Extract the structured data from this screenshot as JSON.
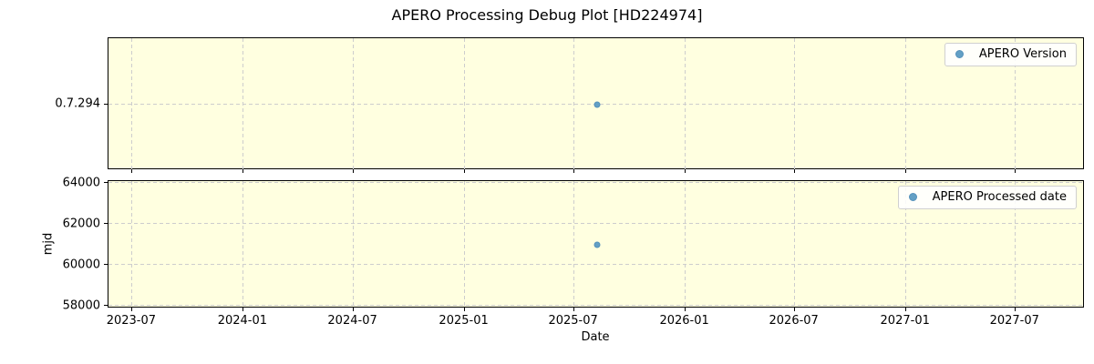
{
  "title": "APERO Processing Debug Plot [HD224974]",
  "colors": {
    "plot_background": "#ffffe0",
    "figure_background": "#ffffff",
    "marker": "#63a0c5",
    "grid": "#cdcdcd",
    "spine": "#000000",
    "legend_background": "#ffffff",
    "legend_border": "#d0d0d0",
    "text": "#000000"
  },
  "chart_data": [
    {
      "type": "scatter",
      "name": "apero-version",
      "legend": {
        "label": "APERO Version",
        "position": "upper right"
      },
      "grid": true,
      "x_axis": {
        "type": "date",
        "lim": [
          "2023-05-23",
          "2027-10-24"
        ],
        "tick_labels_visible": false
      },
      "y_axis": {
        "type": "category",
        "ticks": [
          "0.7.294"
        ]
      },
      "series": [
        {
          "name": "APERO Version",
          "marker": "circle",
          "x": [
            "2025-08-09"
          ],
          "y": [
            "0.7.294"
          ]
        }
      ]
    },
    {
      "type": "scatter",
      "name": "apero-processed-date",
      "legend": {
        "label": "APERO Processed date",
        "position": "upper right"
      },
      "grid": true,
      "xlabel": "Date",
      "ylabel": "mjd",
      "x_axis": {
        "type": "date",
        "ticks": [
          "2023-07",
          "2024-01",
          "2024-07",
          "2025-01",
          "2025-07",
          "2026-01",
          "2026-07",
          "2027-01",
          "2027-07"
        ],
        "lim": [
          "2023-05-23",
          "2027-10-24"
        ],
        "tick_labels_visible": true
      },
      "y_axis": {
        "type": "linear",
        "ticks": [
          58000,
          60000,
          62000,
          64000
        ],
        "lim": [
          57870,
          64090
        ]
      },
      "series": [
        {
          "name": "APERO Processed date",
          "marker": "circle",
          "x": [
            "2025-08-09"
          ],
          "y": [
            61000
          ]
        }
      ]
    }
  ]
}
